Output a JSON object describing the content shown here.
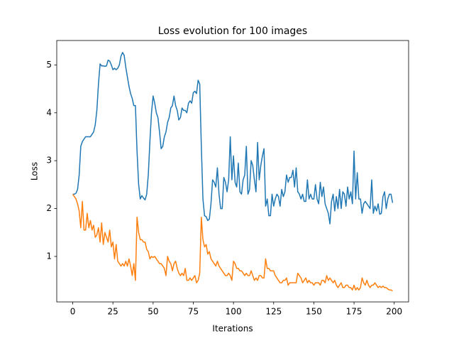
{
  "chart_data": {
    "type": "line",
    "title": "Loss evolution for 100 images",
    "x_label": "Iterations",
    "y_label": "Loss",
    "x": [
      0,
      1,
      2,
      3,
      4,
      5,
      6,
      7,
      8,
      9,
      10,
      11,
      12,
      13,
      14,
      15,
      16,
      17,
      18,
      19,
      20,
      21,
      22,
      23,
      24,
      25,
      26,
      27,
      28,
      29,
      30,
      31,
      32,
      33,
      34,
      35,
      36,
      37,
      38,
      39,
      40,
      41,
      42,
      43,
      44,
      45,
      46,
      47,
      48,
      49,
      50,
      51,
      52,
      53,
      54,
      55,
      56,
      57,
      58,
      59,
      60,
      61,
      62,
      63,
      64,
      65,
      66,
      67,
      68,
      69,
      70,
      71,
      72,
      73,
      74,
      75,
      76,
      77,
      78,
      79,
      80,
      81,
      82,
      83,
      84,
      85,
      86,
      87,
      88,
      89,
      90,
      91,
      92,
      93,
      94,
      95,
      96,
      97,
      98,
      99,
      100,
      101,
      102,
      103,
      104,
      105,
      106,
      107,
      108,
      109,
      110,
      111,
      112,
      113,
      114,
      115,
      116,
      117,
      118,
      119,
      120,
      121,
      122,
      123,
      124,
      125,
      126,
      127,
      128,
      129,
      130,
      131,
      132,
      133,
      134,
      135,
      136,
      137,
      138,
      139,
      140,
      141,
      142,
      143,
      144,
      145,
      146,
      147,
      148,
      149,
      150,
      151,
      152,
      153,
      154,
      155,
      156,
      157,
      158,
      159,
      160,
      161,
      162,
      163,
      164,
      165,
      166,
      167,
      168,
      169,
      170,
      171,
      172,
      173,
      174,
      175,
      176,
      177,
      178,
      179,
      180,
      181,
      182,
      183,
      184,
      185,
      186,
      187,
      188,
      189,
      190,
      191,
      192,
      193,
      194,
      195,
      196,
      197,
      198,
      199
    ],
    "series": [
      {
        "color": "#1f77b4",
        "values": [
          2.3,
          2.3,
          2.32,
          2.4,
          2.7,
          3.3,
          3.4,
          3.45,
          3.5,
          3.5,
          3.5,
          3.5,
          3.55,
          3.6,
          3.75,
          4.05,
          4.6,
          5.02,
          4.98,
          4.98,
          4.97,
          4.98,
          5.1,
          5.08,
          5.0,
          4.9,
          4.93,
          4.9,
          4.93,
          5.0,
          5.18,
          5.26,
          5.2,
          4.95,
          4.75,
          4.55,
          4.4,
          4.3,
          4.15,
          4.15,
          3.2,
          2.5,
          2.2,
          2.27,
          2.22,
          2.18,
          2.3,
          2.7,
          3.4,
          4.0,
          4.35,
          4.2,
          4.0,
          3.9,
          3.6,
          3.25,
          3.3,
          3.5,
          3.6,
          3.8,
          3.9,
          4.1,
          4.15,
          4.35,
          4.15,
          4.05,
          3.85,
          3.9,
          4.1,
          4.05,
          4.05,
          4.0,
          4.2,
          4.25,
          4.2,
          4.42,
          4.45,
          4.4,
          4.68,
          4.6,
          3.3,
          2.2,
          1.85,
          1.83,
          1.75,
          1.78,
          2.1,
          2.6,
          2.55,
          2.45,
          2.85,
          2.3,
          2.0,
          2.0,
          2.65,
          2.55,
          2.35,
          2.6,
          3.5,
          2.6,
          3.1,
          2.55,
          2.45,
          2.95,
          2.35,
          2.3,
          2.6,
          2.7,
          3.3,
          2.3,
          2.4,
          3.0,
          2.9,
          2.6,
          2.35,
          3.38,
          2.6,
          2.9,
          3.1,
          3.25,
          2.05,
          2.2,
          1.85,
          1.85,
          2.3,
          2.05,
          2.2,
          2.3,
          2.25,
          2.05,
          2.4,
          2.25,
          2.35,
          2.7,
          2.55,
          2.65,
          2.65,
          2.8,
          2.45,
          2.85,
          2.35,
          2.3,
          2.2,
          2.3,
          2.15,
          2.15,
          2.6,
          2.2,
          2.3,
          2.2,
          2.2,
          2.5,
          2.2,
          2.1,
          2.55,
          2.25,
          2.45,
          2.1,
          2.0,
          1.9,
          1.68,
          2.15,
          2.3,
          1.95,
          2.25,
          2.0,
          2.4,
          2.0,
          2.35,
          2.3,
          2.05,
          2.45,
          2.2,
          2.35,
          2.1,
          3.2,
          2.2,
          2.75,
          2.2,
          2.2,
          1.9,
          2.1,
          2.15,
          2.1,
          2.05,
          2.0,
          2.6,
          1.9,
          2.05,
          1.95,
          2.1,
          1.88,
          1.9,
          2.25,
          2.35,
          2.0,
          2.2,
          2.3,
          2.3,
          2.12
        ]
      },
      {
        "color": "#ff7f0e",
        "values": [
          2.3,
          2.25,
          2.2,
          2.1,
          1.95,
          1.6,
          2.15,
          1.55,
          1.55,
          1.9,
          1.6,
          1.75,
          1.55,
          1.65,
          1.4,
          1.45,
          1.6,
          1.3,
          1.7,
          1.25,
          1.5,
          1.4,
          1.3,
          1.55,
          1.2,
          1.3,
          0.95,
          1.25,
          0.9,
          0.85,
          0.8,
          0.85,
          0.8,
          0.9,
          0.8,
          0.95,
          0.8,
          0.6,
          0.85,
          0.5,
          1.82,
          1.5,
          1.35,
          1.35,
          1.3,
          1.3,
          1.15,
          1.1,
          0.95,
          1.0,
          0.98,
          1.0,
          0.95,
          0.9,
          0.85,
          0.85,
          0.8,
          0.75,
          0.6,
          1.0,
          0.9,
          0.85,
          0.7,
          0.85,
          0.9,
          0.75,
          0.65,
          0.6,
          0.65,
          0.6,
          0.75,
          0.5,
          0.5,
          0.55,
          0.5,
          0.55,
          0.6,
          0.45,
          0.5,
          0.65,
          1.82,
          1.35,
          1.2,
          1.25,
          1.05,
          1.1,
          0.95,
          0.9,
          0.85,
          0.8,
          0.9,
          0.8,
          0.75,
          0.7,
          0.65,
          0.6,
          0.6,
          0.65,
          0.6,
          0.5,
          0.9,
          0.85,
          0.75,
          0.75,
          0.7,
          0.7,
          0.65,
          0.6,
          0.65,
          0.6,
          0.6,
          0.7,
          0.6,
          0.5,
          0.55,
          0.5,
          0.6,
          0.6,
          0.55,
          0.55,
          0.95,
          0.75,
          0.75,
          0.7,
          0.7,
          0.7,
          0.6,
          0.55,
          0.5,
          0.45,
          0.45,
          0.5,
          0.5,
          0.55,
          0.4,
          0.45,
          0.45,
          0.45,
          0.45,
          0.45,
          0.65,
          0.6,
          0.55,
          0.45,
          0.5,
          0.55,
          0.45,
          0.5,
          0.45,
          0.45,
          0.4,
          0.45,
          0.45,
          0.45,
          0.4,
          0.5,
          0.5,
          0.45,
          0.6,
          0.5,
          0.55,
          0.5,
          0.45,
          0.5,
          0.4,
          0.35,
          0.4,
          0.45,
          0.35,
          0.35,
          0.4,
          0.4,
          0.35,
          0.35,
          0.3,
          0.4,
          0.3,
          0.35,
          0.3,
          0.35,
          0.55,
          0.45,
          0.4,
          0.5,
          0.4,
          0.35,
          0.4,
          0.4,
          0.45,
          0.4,
          0.35,
          0.38,
          0.35,
          0.38,
          0.35,
          0.35,
          0.32,
          0.3,
          0.3,
          0.28
        ]
      }
    ],
    "xlim": [
      -9.95,
      208.95
    ],
    "ylim": [
      0.05,
      5.51
    ],
    "xticks": [
      0,
      25,
      50,
      75,
      100,
      125,
      150,
      175,
      200
    ],
    "yticks": [
      1,
      2,
      3,
      4,
      5
    ],
    "grid": false
  }
}
